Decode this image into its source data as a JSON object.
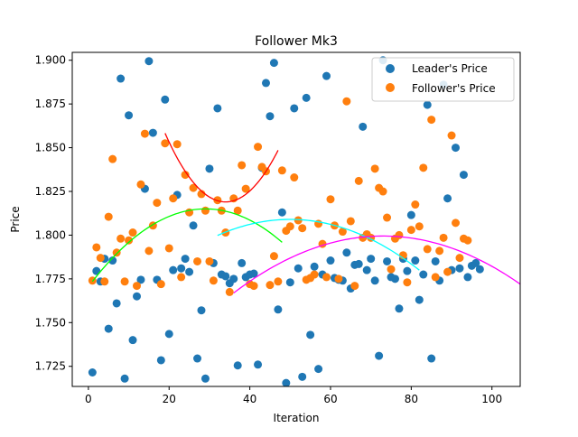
{
  "chart_data": {
    "type": "scatter",
    "title": "Follower Mk3",
    "xlabel": "Iteration",
    "ylabel": "Price",
    "xlim": [
      -4,
      107
    ],
    "ylim": [
      1.7135,
      1.9045
    ],
    "xticks": [
      0,
      20,
      40,
      60,
      80,
      100
    ],
    "xtick_labels": [
      "0",
      "20",
      "40",
      "60",
      "80",
      "100"
    ],
    "yticks": [
      1.725,
      1.75,
      1.775,
      1.8,
      1.825,
      1.85,
      1.875,
      1.9
    ],
    "ytick_labels": [
      "1.725",
      "1.750",
      "1.775",
      "1.800",
      "1.825",
      "1.850",
      "1.875",
      "1.900"
    ],
    "grid": false,
    "legend_position": "top-right",
    "series": [
      {
        "name": "Leader's Price",
        "color": "#1f77b4",
        "points": [
          [
            1,
            1.7215
          ],
          [
            2,
            1.7795
          ],
          [
            3,
            1.7735
          ],
          [
            4,
            1.7865
          ],
          [
            5,
            1.7465
          ],
          [
            6,
            1.7855
          ],
          [
            7,
            1.761
          ],
          [
            8,
            1.8895
          ],
          [
            9,
            1.718
          ],
          [
            10,
            1.8685
          ],
          [
            11,
            1.74
          ],
          [
            12,
            1.765
          ],
          [
            13,
            1.7745
          ],
          [
            14,
            1.8265
          ],
          [
            15,
            1.8995
          ],
          [
            16,
            1.8585
          ],
          [
            17,
            1.7745
          ],
          [
            18,
            1.7285
          ],
          [
            19,
            1.8775
          ],
          [
            20,
            1.7435
          ],
          [
            21,
            1.78
          ],
          [
            22,
            1.823
          ],
          [
            23,
            1.781
          ],
          [
            24,
            1.7865
          ],
          [
            25,
            1.779
          ],
          [
            26,
            1.8055
          ],
          [
            27,
            1.7295
          ],
          [
            28,
            1.757
          ],
          [
            29,
            1.718
          ],
          [
            30,
            1.838
          ],
          [
            31,
            1.784
          ],
          [
            32,
            1.8725
          ],
          [
            33,
            1.7775
          ],
          [
            34,
            1.7765
          ],
          [
            35,
            1.7725
          ],
          [
            36,
            1.775
          ],
          [
            37,
            1.7255
          ],
          [
            38,
            1.784
          ],
          [
            39,
            1.776
          ],
          [
            40,
            1.7775
          ],
          [
            41,
            1.778
          ],
          [
            42,
            1.726
          ],
          [
            43,
            1.8385
          ],
          [
            44,
            1.887
          ],
          [
            45,
            1.868
          ],
          [
            46,
            1.8985
          ],
          [
            47,
            1.7575
          ],
          [
            48,
            1.813
          ],
          [
            49,
            1.7155
          ],
          [
            50,
            1.773
          ],
          [
            51,
            1.8725
          ],
          [
            52,
            1.781
          ],
          [
            53,
            1.719
          ],
          [
            54,
            1.8785
          ],
          [
            55,
            1.743
          ],
          [
            56,
            1.782
          ],
          [
            57,
            1.7235
          ],
          [
            58,
            1.7775
          ],
          [
            59,
            1.891
          ],
          [
            60,
            1.7855
          ],
          [
            61,
            1.7755
          ],
          [
            62,
            1.7745
          ],
          [
            63,
            1.774
          ],
          [
            64,
            1.79
          ],
          [
            65,
            1.7695
          ],
          [
            66,
            1.783
          ],
          [
            67,
            1.7835
          ],
          [
            68,
            1.862
          ],
          [
            69,
            1.78
          ],
          [
            70,
            1.7865
          ],
          [
            71,
            1.774
          ],
          [
            72,
            1.731
          ],
          [
            73,
            1.9
          ],
          [
            74,
            1.785
          ],
          [
            75,
            1.776
          ],
          [
            76,
            1.775
          ],
          [
            77,
            1.758
          ],
          [
            78,
            1.7865
          ],
          [
            79,
            1.7795
          ],
          [
            80,
            1.8115
          ],
          [
            81,
            1.7855
          ],
          [
            82,
            1.763
          ],
          [
            83,
            1.7775
          ],
          [
            84,
            1.8745
          ],
          [
            85,
            1.7295
          ],
          [
            86,
            1.785
          ],
          [
            87,
            1.774
          ],
          [
            88,
            1.886
          ],
          [
            89,
            1.821
          ],
          [
            90,
            1.78
          ],
          [
            91,
            1.85
          ],
          [
            92,
            1.781
          ],
          [
            93,
            1.8345
          ],
          [
            94,
            1.776
          ],
          [
            95,
            1.7825
          ],
          [
            96,
            1.784
          ],
          [
            97,
            1.7805
          ]
        ]
      },
      {
        "name": "Follower's Price",
        "color": "#ff7f0e",
        "points": [
          [
            1,
            1.774
          ],
          [
            2,
            1.793
          ],
          [
            3,
            1.787
          ],
          [
            4,
            1.7735
          ],
          [
            5,
            1.8105
          ],
          [
            6,
            1.8435
          ],
          [
            7,
            1.79
          ],
          [
            8,
            1.798
          ],
          [
            9,
            1.7735
          ],
          [
            10,
            1.797
          ],
          [
            11,
            1.8015
          ],
          [
            12,
            1.771
          ],
          [
            13,
            1.829
          ],
          [
            14,
            1.858
          ],
          [
            15,
            1.791
          ],
          [
            16,
            1.8055
          ],
          [
            17,
            1.8185
          ],
          [
            18,
            1.772
          ],
          [
            19,
            1.8525
          ],
          [
            20,
            1.7925
          ],
          [
            21,
            1.821
          ],
          [
            22,
            1.852
          ],
          [
            23,
            1.776
          ],
          [
            24,
            1.8345
          ],
          [
            25,
            1.813
          ],
          [
            26,
            1.827
          ],
          [
            27,
            1.785
          ],
          [
            28,
            1.8235
          ],
          [
            29,
            1.814
          ],
          [
            30,
            1.785
          ],
          [
            31,
            1.774
          ],
          [
            32,
            1.82
          ],
          [
            33,
            1.814
          ],
          [
            34,
            1.8015
          ],
          [
            35,
            1.7675
          ],
          [
            36,
            1.821
          ],
          [
            37,
            1.814
          ],
          [
            38,
            1.84
          ],
          [
            39,
            1.8265
          ],
          [
            40,
            1.772
          ],
          [
            41,
            1.771
          ],
          [
            42,
            1.8505
          ],
          [
            43,
            1.839
          ],
          [
            44,
            1.8365
          ],
          [
            45,
            1.7715
          ],
          [
            46,
            1.788
          ],
          [
            47,
            1.7735
          ],
          [
            48,
            1.837
          ],
          [
            49,
            1.8025
          ],
          [
            50,
            1.805
          ],
          [
            51,
            1.833
          ],
          [
            52,
            1.8085
          ],
          [
            53,
            1.804
          ],
          [
            54,
            1.7745
          ],
          [
            55,
            1.7755
          ],
          [
            56,
            1.7775
          ],
          [
            57,
            1.8065
          ],
          [
            58,
            1.795
          ],
          [
            59,
            1.776
          ],
          [
            60,
            1.8205
          ],
          [
            61,
            1.8055
          ],
          [
            62,
            1.775
          ],
          [
            63,
            1.802
          ],
          [
            64,
            1.8765
          ],
          [
            65,
            1.808
          ],
          [
            66,
            1.771
          ],
          [
            67,
            1.831
          ],
          [
            68,
            1.7985
          ],
          [
            69,
            1.8005
          ],
          [
            70,
            1.7985
          ],
          [
            71,
            1.838
          ],
          [
            72,
            1.827
          ],
          [
            73,
            1.825
          ],
          [
            74,
            1.81
          ],
          [
            75,
            1.7805
          ],
          [
            76,
            1.798
          ],
          [
            77,
            1.8
          ],
          [
            78,
            1.7885
          ],
          [
            79,
            1.773
          ],
          [
            80,
            1.803
          ],
          [
            81,
            1.8175
          ],
          [
            82,
            1.805
          ],
          [
            83,
            1.8385
          ],
          [
            84,
            1.792
          ],
          [
            85,
            1.866
          ],
          [
            86,
            1.776
          ],
          [
            87,
            1.791
          ],
          [
            88,
            1.7985
          ],
          [
            89,
            1.779
          ],
          [
            90,
            1.857
          ],
          [
            91,
            1.807
          ],
          [
            92,
            1.787
          ],
          [
            93,
            1.798
          ],
          [
            94,
            1.797
          ]
        ]
      }
    ],
    "fit_curves": [
      {
        "color": "#ff0000",
        "x0": 19,
        "x1": 47,
        "vertex": [
          34,
          1.819
        ],
        "end": [
          47,
          1.8485
        ]
      },
      {
        "color": "#00ff00",
        "x0": 1,
        "x1": 48,
        "vertex": [
          29,
          1.815
        ],
        "end": [
          1,
          1.7735
        ]
      },
      {
        "color": "#00ffff",
        "x0": 32,
        "x1": 82,
        "vertex": [
          50,
          1.809
        ],
        "end": [
          82,
          1.78
        ]
      },
      {
        "color": "#ff00ff",
        "x0": 36,
        "x1": 107,
        "vertex": [
          73,
          1.7995
        ],
        "end": [
          107,
          1.772
        ]
      }
    ]
  }
}
